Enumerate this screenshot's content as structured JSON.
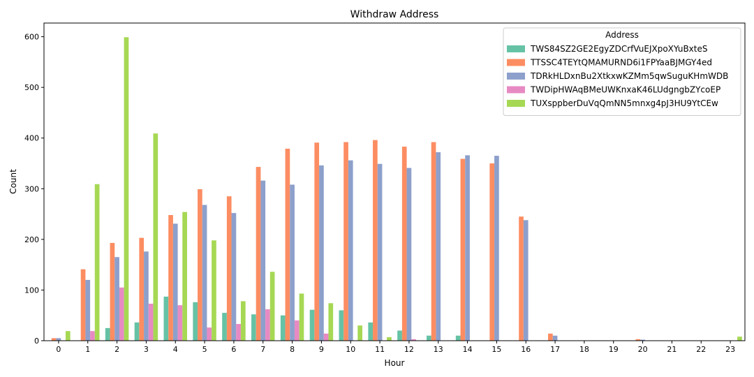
{
  "chart_data": {
    "type": "bar",
    "title": "Withdraw Address",
    "xlabel": "Hour",
    "ylabel": "Count",
    "ylim": [
      0,
      627
    ],
    "yticks": [
      0,
      100,
      200,
      300,
      400,
      500,
      600
    ],
    "categories": [
      "0",
      "1",
      "2",
      "3",
      "4",
      "5",
      "6",
      "7",
      "8",
      "9",
      "10",
      "11",
      "12",
      "13",
      "14",
      "15",
      "16",
      "17",
      "18",
      "19",
      "20",
      "21",
      "22",
      "23"
    ],
    "legend": {
      "title": "Address",
      "position": "top-right"
    },
    "grid": false,
    "series": [
      {
        "name": "TWS84SZ2GE2EgyZDCrfVuEJXpoXYuBxteS",
        "color": "#66c2a5",
        "values": [
          0,
          0,
          25,
          36,
          87,
          76,
          55,
          52,
          50,
          61,
          60,
          36,
          20,
          10,
          10,
          0,
          0,
          0,
          0,
          0,
          0,
          0,
          0,
          0
        ]
      },
      {
        "name": "TTSSC4TEYtQMAMURND6i1FPYaaBJMGY4ed",
        "color": "#fc8d62",
        "values": [
          5,
          141,
          193,
          203,
          248,
          299,
          285,
          343,
          379,
          391,
          392,
          396,
          383,
          392,
          359,
          350,
          245,
          14,
          0,
          0,
          3,
          0,
          0,
          0
        ]
      },
      {
        "name": "TDRkHLDxnBu2XtkxwKZMm5qwSuguKHmWDB",
        "color": "#8da0cb",
        "values": [
          5,
          120,
          165,
          176,
          231,
          268,
          252,
          316,
          308,
          346,
          356,
          349,
          341,
          372,
          366,
          365,
          238,
          10,
          0,
          0,
          2,
          0,
          0,
          0
        ]
      },
      {
        "name": "TWDipHWAqBMeUWKnxaK46LUdgngbZYcoEP",
        "color": "#e78ac3",
        "values": [
          0,
          19,
          105,
          73,
          70,
          26,
          33,
          62,
          40,
          14,
          0,
          0,
          3,
          0,
          0,
          0,
          0,
          0,
          0,
          0,
          0,
          0,
          0,
          0
        ]
      },
      {
        "name": "TUXsppberDuVqQmNN5mnxg4pJ3HU9YtCEw",
        "color": "#a6d854",
        "values": [
          19,
          309,
          599,
          409,
          254,
          198,
          78,
          136,
          93,
          74,
          30,
          7,
          0,
          0,
          0,
          0,
          0,
          0,
          0,
          0,
          0,
          0,
          0,
          8
        ]
      }
    ]
  }
}
